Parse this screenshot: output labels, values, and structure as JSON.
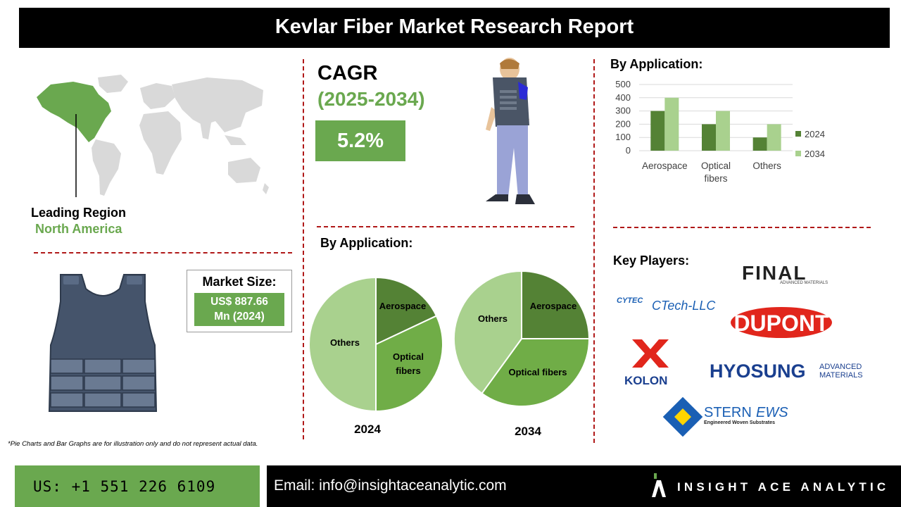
{
  "header": {
    "title": "Kevlar Fiber Market Research Report"
  },
  "leading_region": {
    "label": "Leading Region",
    "value": "North America"
  },
  "cagr": {
    "label": "CAGR",
    "period": "(2025-2034)",
    "value": "5.2%"
  },
  "market_size": {
    "label": "Market Size:",
    "value_line1": "US$ 887.66",
    "value_line2": "Mn (2024)"
  },
  "bar_section": {
    "title": "By Application:"
  },
  "pie_section": {
    "title": "By Application:"
  },
  "key_players": {
    "title": "Key Players:",
    "logos": [
      "FINAL",
      "ADVANCED MATERIALS",
      "CYTEC",
      "CTech-LLC",
      "DUPONT",
      "KOLON",
      "HYOSUNG",
      "ADVANCED",
      "MATERIALS",
      "STERN",
      "EWS",
      "Engineered Woven Substrates"
    ]
  },
  "footnote": "*Pie Charts and Bar Graphs are for illustration only and do not represent actual data.",
  "footer": {
    "phone": "US: +1 551 226 6109",
    "email": "Email: info@insightaceanalytic.com",
    "brand": "INSIGHT ACE ANALYTIC"
  },
  "colors": {
    "dark_green": "#548235",
    "mid_green": "#70ad47",
    "light_green": "#a9d18e",
    "accent_red": "#b01818"
  },
  "chart_data": [
    {
      "type": "bar",
      "categories": [
        "Aerospace",
        "Optical fibers",
        "Others"
      ],
      "series": [
        {
          "name": "2024",
          "values": [
            300,
            200,
            100
          ],
          "color": "#548235"
        },
        {
          "name": "2034",
          "values": [
            400,
            300,
            200
          ],
          "color": "#a9d18e"
        }
      ],
      "yticks": [
        "0",
        "100",
        "200",
        "300",
        "400",
        "500"
      ],
      "ylim": [
        0,
        500
      ],
      "grid": true,
      "legend": "right"
    },
    {
      "type": "pie",
      "caption": "2024",
      "slices": [
        {
          "label": "Aerospace",
          "value": 18,
          "color": "#548235"
        },
        {
          "label": "Optical fibers",
          "value": 32,
          "color": "#70ad47"
        },
        {
          "label": "Others",
          "value": 50,
          "color": "#a9d18e"
        }
      ]
    },
    {
      "type": "pie",
      "caption": "2034",
      "slices": [
        {
          "label": "Aerospace",
          "value": 25,
          "color": "#548235"
        },
        {
          "label": "Optical fibers",
          "value": 35,
          "color": "#70ad47"
        },
        {
          "label": "Others",
          "value": 40,
          "color": "#a9d18e"
        }
      ]
    }
  ]
}
